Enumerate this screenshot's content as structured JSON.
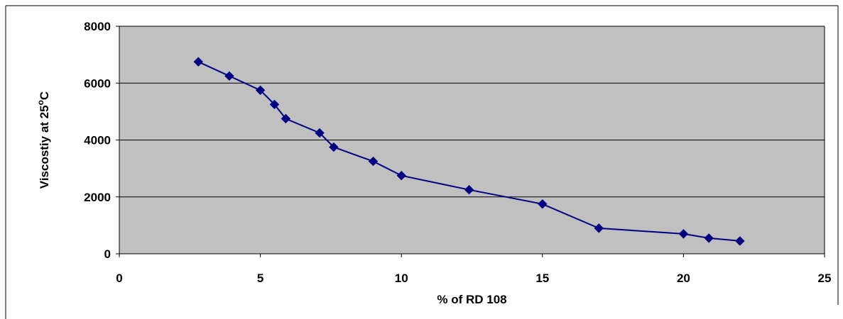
{
  "chart_data": {
    "type": "line",
    "title": "",
    "xlabel": "% of RD 108",
    "ylabel": {
      "prefix": "Viscostiy at 25",
      "superscript": "o",
      "suffix": "C"
    },
    "xlim": [
      0,
      25
    ],
    "ylim": [
      0,
      8000
    ],
    "x_ticks": [
      0,
      5,
      10,
      15,
      20,
      25
    ],
    "y_ticks": [
      0,
      2000,
      4000,
      6000,
      8000
    ],
    "grid": "horizontal",
    "legend": "none",
    "colors": {
      "plot_background": "#c0c0c0",
      "series": "#000080",
      "gridline": "#000000",
      "outer_border": "#000000"
    },
    "series": [
      {
        "x": [
          2.8,
          3.9,
          5.0,
          5.5,
          5.9,
          7.1,
          7.6,
          9.0,
          10.0,
          12.4,
          15.0,
          17.0,
          20.0,
          20.9,
          22.0
        ],
        "y": [
          6750,
          6250,
          5750,
          5250,
          4750,
          4250,
          3750,
          3250,
          2750,
          2250,
          1750,
          900,
          700,
          550,
          450
        ]
      }
    ]
  }
}
